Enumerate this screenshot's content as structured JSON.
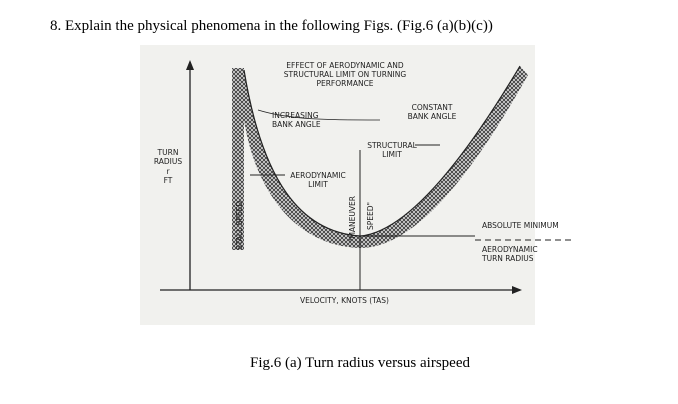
{
  "question": "8. Explain the physical phenomena in the following Figs. (Fig.6 (a)(b)(c))",
  "figure": {
    "title": [
      "EFFECT OF AERODYNAMIC AND",
      "STRUCTURAL LIMIT ON TURNING",
      "PERFORMANCE"
    ],
    "y_axis_label": [
      "TURN",
      "RADIUS",
      "r",
      "FT"
    ],
    "x_axis_label": "VELOCITY, KNOTS (TAS)",
    "increasing_bank_angle": [
      "INCREASING",
      "BANK ANGLE"
    ],
    "constant_bank_angle": [
      "CONSTANT",
      "BANK ANGLE"
    ],
    "structural_limit": [
      "STRUCTURAL",
      "LIMIT"
    ],
    "aerodynamic_limit": [
      "AERODYNAMIC",
      "LIMIT"
    ],
    "stall_speed": "STALL SPEED",
    "maneuver_speed": [
      "\"MANEUVER",
      "SPEED\""
    ],
    "absolute_minimum": "ABSOLUTE MINIMUM",
    "aerodynamic_turn_radius": [
      "AERODYNAMIC",
      "TURN RADIUS"
    ]
  },
  "caption": "Fig.6 (a) Turn radius versus airspeed"
}
